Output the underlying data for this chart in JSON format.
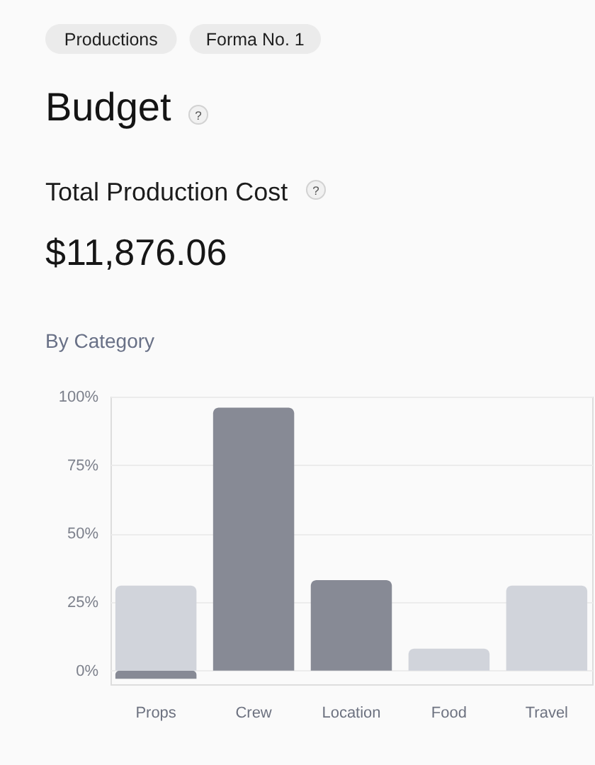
{
  "chart_data": {
    "type": "bar",
    "title": "Budget",
    "subtitle": "Total Production Cost",
    "annotations": [
      "Productions",
      "Forma No. 1",
      "?",
      "?",
      "$11,876.06",
      "By Category"
    ],
    "categories": [
      "Props",
      "Crew",
      "Location",
      "Food",
      "Travel"
    ],
    "stacked": true,
    "series": [
      {
        "color": "#878a95",
        "values": [
          -3,
          96,
          33,
          null,
          null
        ]
      },
      {
        "color": "#d1d4db",
        "values": [
          31,
          null,
          null,
          8,
          31
        ]
      }
    ],
    "ylim": [
      -5,
      100
    ],
    "yticks": [
      {
        "value": 0,
        "label": "0%"
      },
      {
        "value": 25,
        "label": "25%"
      },
      {
        "value": 50,
        "label": "50%"
      },
      {
        "value": 75,
        "label": "75%"
      },
      {
        "value": 100,
        "label": "100%"
      }
    ],
    "grid": "y"
  }
}
